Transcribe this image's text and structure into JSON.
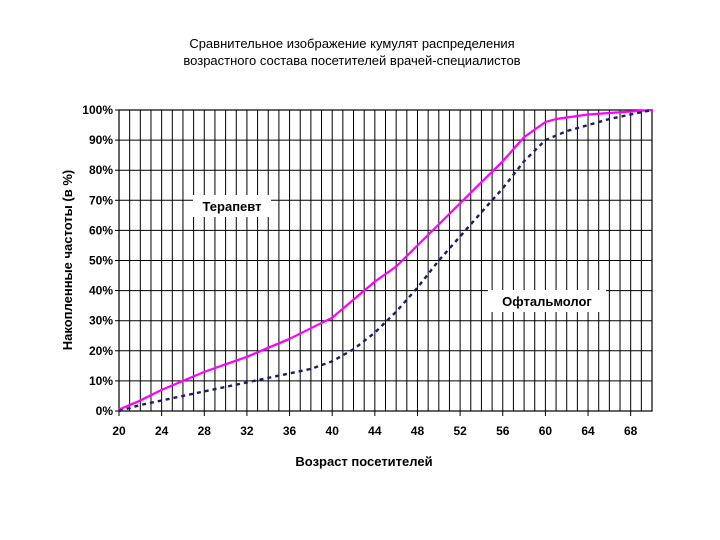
{
  "chart_data": {
    "type": "line",
    "title_lines": [
      "Сравнительное изображение кумулят распределения",
      "возрастного состава посетителей врачей-специалистов"
    ],
    "xlabel": "Возраст посетителей",
    "ylabel": "Накопленные частоты (в %)",
    "xlim": [
      20,
      70
    ],
    "ylim": [
      0,
      100
    ],
    "x_ticks": [
      20,
      24,
      28,
      32,
      36,
      40,
      44,
      48,
      52,
      56,
      60,
      64,
      68
    ],
    "y_ticks": [
      0,
      10,
      20,
      30,
      40,
      50,
      60,
      70,
      80,
      90,
      100
    ],
    "y_tick_labels": [
      "0%",
      "10%",
      "20%",
      "30%",
      "40%",
      "50%",
      "60%",
      "70%",
      "80%",
      "90%",
      "100%"
    ],
    "grid": "vertical every 1 year, horizontal every 10%",
    "series": [
      {
        "name": "Терапевт",
        "color": "#ff00ff",
        "style": "solid",
        "x": [
          20,
          22,
          24,
          26,
          28,
          30,
          32,
          34,
          36,
          38,
          40,
          42,
          44,
          46,
          48,
          50,
          52,
          54,
          56,
          58,
          60,
          61,
          62,
          64,
          66,
          68,
          70
        ],
        "y": [
          0.5,
          3.5,
          7,
          10,
          13,
          15.5,
          18,
          21,
          24,
          27.5,
          31,
          37,
          43,
          48,
          55,
          62,
          69,
          76,
          83,
          91,
          96,
          97,
          97.5,
          98.5,
          99,
          99.5,
          100
        ]
      },
      {
        "name": "Офтальмолог",
        "color": "#1c1c6b",
        "style": "dashed",
        "x": [
          20,
          22,
          24,
          26,
          28,
          30,
          32,
          34,
          36,
          38,
          40,
          42,
          44,
          46,
          48,
          50,
          52,
          54,
          56,
          58,
          60,
          62,
          64,
          66,
          68,
          70
        ],
        "y": [
          0,
          2,
          3.5,
          5,
          6.5,
          8,
          9.5,
          11,
          12.5,
          14,
          16.5,
          20.5,
          26,
          33,
          41,
          50,
          58,
          66,
          74,
          83,
          90,
          93,
          95,
          97,
          98.5,
          100
        ]
      }
    ],
    "annotations": [
      {
        "text": "Терапевт",
        "x": 25,
        "y": 68
      },
      {
        "text": "Офтальмолог",
        "x": 52.5,
        "y": 35.5
      }
    ]
  }
}
